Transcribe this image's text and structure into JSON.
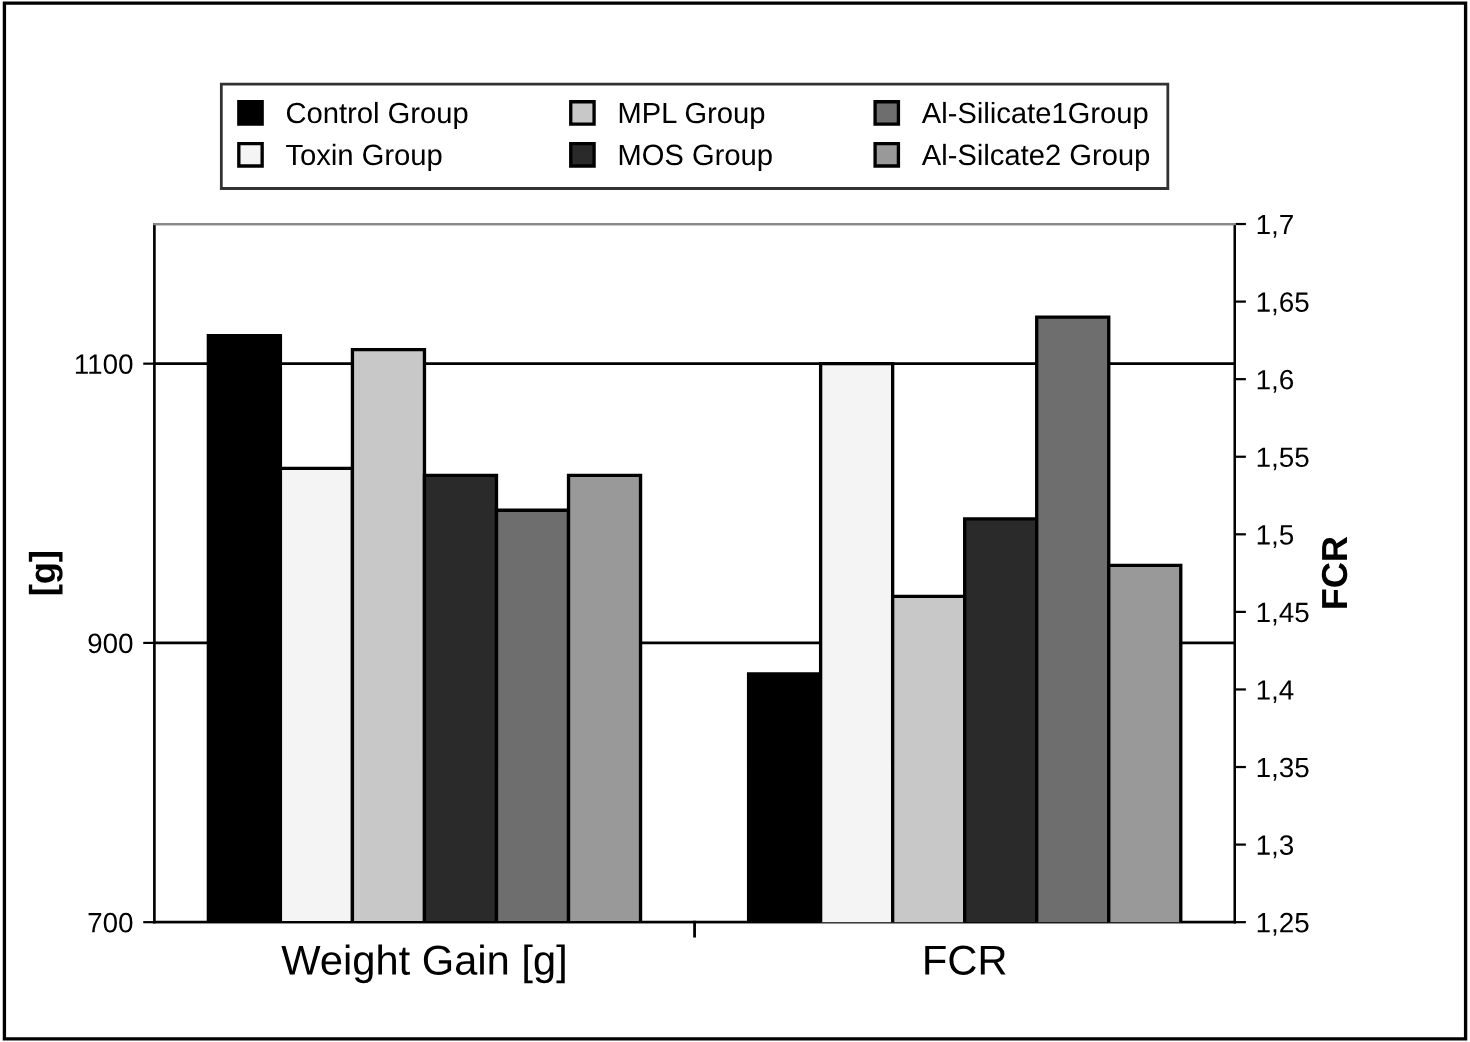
{
  "chart_data": {
    "type": "bar",
    "categories": [
      "Weight Gain [g]",
      "FCR"
    ],
    "ylabel": "[g]",
    "y2label": "FCR",
    "series": [
      {
        "name": "Control Group",
        "color": "#000000",
        "values": [
          1120,
          null
        ],
        "axis": "y"
      },
      {
        "name": "Toxin Group",
        "color": "#f4f4f4",
        "values": [
          1025,
          null
        ],
        "axis": "y"
      },
      {
        "name": "MPL Group",
        "color": "#c8c8c8",
        "values": [
          1110,
          null
        ],
        "axis": "y"
      },
      {
        "name": "MOS Group",
        "color": "#2a2a2a",
        "values": [
          1020,
          null
        ],
        "axis": "y"
      },
      {
        "name": "Al-Silicate1Group",
        "color": "#6e6e6e",
        "values": [
          995,
          null
        ],
        "axis": "y"
      },
      {
        "name": "Al-Silcate2 Group",
        "color": "#999999",
        "values": [
          1020,
          null
        ],
        "axis": "y"
      },
      {
        "color": "#000000",
        "values": [
          null,
          1.41
        ],
        "axis": "y2"
      },
      {
        "color": "#f4f4f4",
        "values": [
          null,
          1.61
        ],
        "axis": "y2"
      },
      {
        "color": "#c8c8c8",
        "values": [
          null,
          1.46
        ],
        "axis": "y2"
      },
      {
        "color": "#2a2a2a",
        "values": [
          null,
          1.51
        ],
        "axis": "y2"
      },
      {
        "color": "#6e6e6e",
        "values": [
          null,
          1.64
        ],
        "axis": "y2"
      },
      {
        "color": "#999999",
        "values": [
          null,
          1.48
        ],
        "axis": "y2"
      }
    ],
    "ylim": [
      700,
      1200
    ],
    "yticks": [
      700,
      900,
      1100
    ],
    "y2lim": [
      1.25,
      1.7
    ],
    "y2ticks": [
      {
        "value": 1.25,
        "label": "1,25"
      },
      {
        "value": 1.3,
        "label": "1,3"
      },
      {
        "value": 1.35,
        "label": "1,35"
      },
      {
        "value": 1.4,
        "label": "1,4"
      },
      {
        "value": 1.45,
        "label": "1,45"
      },
      {
        "value": 1.5,
        "label": "1,5"
      },
      {
        "value": 1.55,
        "label": "1,55"
      },
      {
        "value": 1.6,
        "label": "1,6"
      },
      {
        "value": 1.65,
        "label": "1,65"
      },
      {
        "value": 1.7,
        "label": "1,7"
      }
    ],
    "grid": "y",
    "legend": "top"
  }
}
